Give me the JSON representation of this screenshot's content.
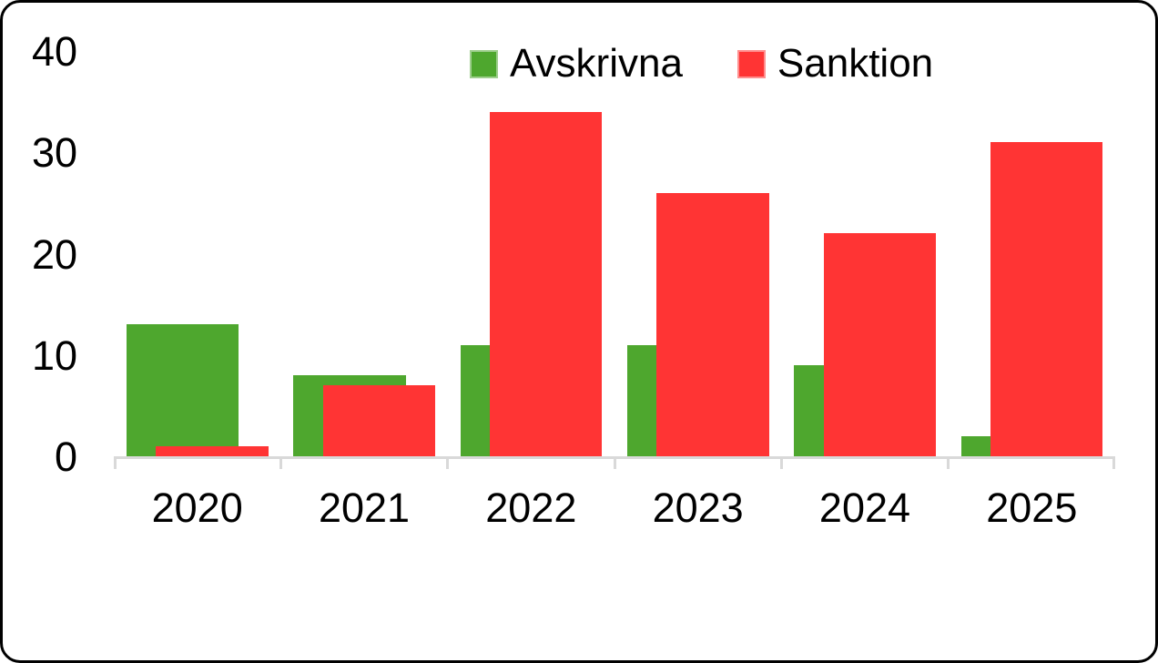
{
  "chart_data": {
    "type": "bar",
    "categories": [
      "2020",
      "2021",
      "2022",
      "2023",
      "2024",
      "2025"
    ],
    "series": [
      {
        "name": "Avskrivna",
        "color": "#4ea72e",
        "values": [
          13,
          8,
          11,
          11,
          9,
          2
        ]
      },
      {
        "name": "Sanktion",
        "color": "#ff3434",
        "values": [
          1,
          7,
          34,
          26,
          22,
          31
        ]
      }
    ],
    "title": "",
    "xlabel": "",
    "ylabel": "",
    "ylim": [
      0,
      40
    ],
    "yticks": [
      0,
      10,
      20,
      30,
      40
    ],
    "legend_position": "top",
    "grid": false,
    "bars_overlap": true
  },
  "colors": {
    "avskrivna": "#4ea72e",
    "sanktion": "#ff3434",
    "axis_line": "#d9d9d9",
    "text": "#000000",
    "background": "#ffffff",
    "border": "#000000"
  }
}
